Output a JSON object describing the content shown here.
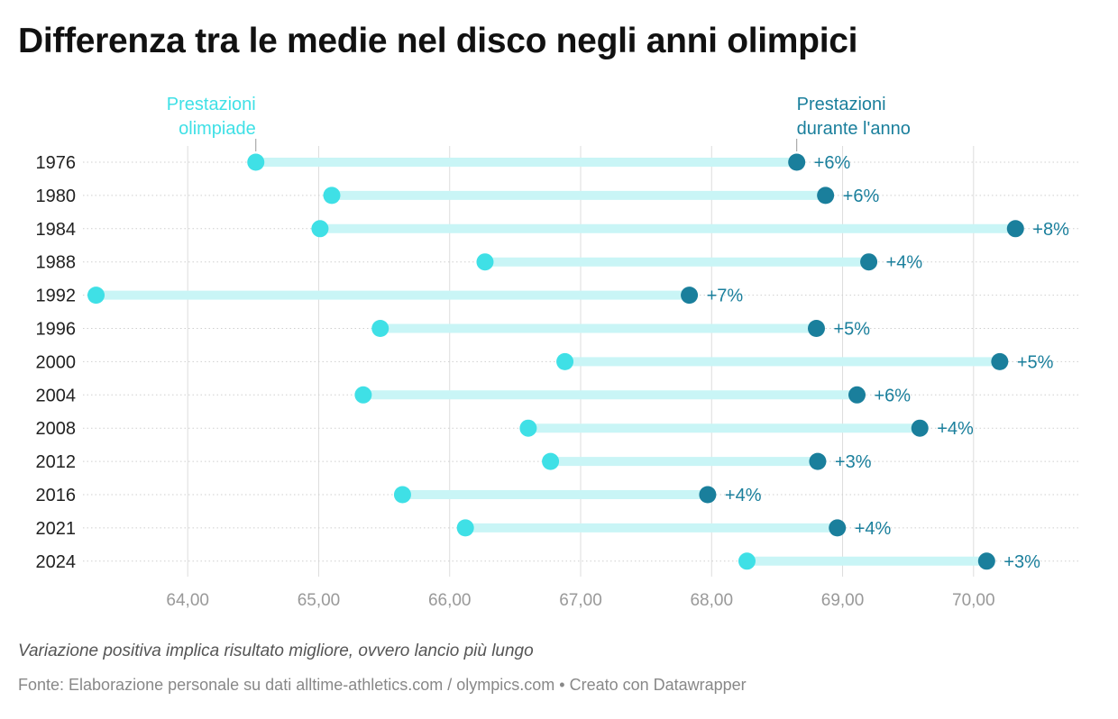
{
  "title": "Differenza tra le medie nel disco negli anni olimpici",
  "notes": "Variazione positiva implica risultato migliore, ovvero lancio più lungo",
  "source": {
    "prefix": "Fonte: Elaborazione personale su dati alltime-athletics.com / olympics.com",
    "separator": " • ",
    "credit": "Creato con Datawrapper"
  },
  "colors": {
    "olympic": "#3fe0e6",
    "season": "#1a7f9c",
    "connector": "#c9f5f6",
    "axis_text": "#999999",
    "grid": "#dddddd"
  },
  "chart_data": {
    "type": "dot-range",
    "xlim": [
      63.2,
      70.8
    ],
    "xticks": [
      64,
      65,
      66,
      67,
      68,
      69,
      70
    ],
    "xtick_labels": [
      "64,00",
      "65,00",
      "66,00",
      "67,00",
      "68,00",
      "69,00",
      "70,00"
    ],
    "grid": true,
    "series": [
      {
        "name": "Prestazioni olimpiade",
        "label_lines": [
          "Prestazioni",
          "olimpiade"
        ]
      },
      {
        "name": "Prestazioni durante l'anno",
        "label_lines": [
          "Prestazioni",
          "durante l'anno"
        ]
      }
    ],
    "rows": [
      {
        "year": "1976",
        "olympic": 64.52,
        "season": 68.65,
        "change": "+6%"
      },
      {
        "year": "1980",
        "olympic": 65.1,
        "season": 68.87,
        "change": "+6%"
      },
      {
        "year": "1984",
        "olympic": 65.01,
        "season": 70.32,
        "change": "+8%"
      },
      {
        "year": "1988",
        "olympic": 66.27,
        "season": 69.2,
        "change": "+4%"
      },
      {
        "year": "1992",
        "olympic": 63.3,
        "season": 67.83,
        "change": "+7%"
      },
      {
        "year": "1996",
        "olympic": 65.47,
        "season": 68.8,
        "change": "+5%"
      },
      {
        "year": "2000",
        "olympic": 66.88,
        "season": 70.2,
        "change": "+5%"
      },
      {
        "year": "2004",
        "olympic": 65.34,
        "season": 69.11,
        "change": "+6%"
      },
      {
        "year": "2008",
        "olympic": 66.6,
        "season": 69.59,
        "change": "+4%"
      },
      {
        "year": "2012",
        "olympic": 66.77,
        "season": 68.81,
        "change": "+3%"
      },
      {
        "year": "2016",
        "olympic": 65.64,
        "season": 67.97,
        "change": "+4%"
      },
      {
        "year": "2021",
        "olympic": 66.12,
        "season": 68.96,
        "change": "+4%"
      },
      {
        "year": "2024",
        "olympic": 68.27,
        "season": 70.1,
        "change": "+3%"
      }
    ]
  }
}
